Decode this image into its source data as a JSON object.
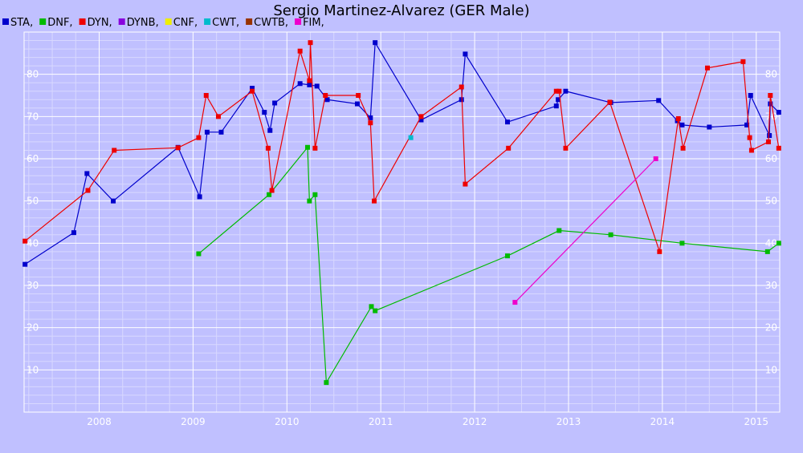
{
  "chart_data": {
    "type": "line",
    "title": "Sergio Martinez-Alvarez (GER Male)",
    "xlabel": "",
    "ylabel": "",
    "xlim": [
      2007.2,
      2015.25
    ],
    "ylim": [
      0,
      90
    ],
    "x_ticks": [
      2008,
      2009,
      2010,
      2011,
      2012,
      2013,
      2014,
      2015
    ],
    "y_ticks": [
      10,
      20,
      30,
      40,
      50,
      60,
      70,
      80
    ],
    "grid": true,
    "legend_position": "top-left",
    "legend": [
      {
        "label": "STA,",
        "color": "#0000cc"
      },
      {
        "label": "DNF,",
        "color": "#00bb00"
      },
      {
        "label": "DYN,",
        "color": "#ee0000"
      },
      {
        "label": "DYNB,",
        "color": "#8800dd"
      },
      {
        "label": "CNF,",
        "color": "#eeee00"
      },
      {
        "label": "CWT,",
        "color": "#00bbcc"
      },
      {
        "label": "CWTB,",
        "color": "#993300"
      },
      {
        "label": "FIM,",
        "color": "#ee00cc"
      }
    ],
    "series": [
      {
        "name": "STA",
        "color": "#0000cc",
        "points": [
          [
            2007.21,
            35
          ],
          [
            2007.73,
            42.5
          ],
          [
            2007.87,
            56.5
          ],
          [
            2008.15,
            50
          ],
          [
            2008.84,
            62.7
          ],
          [
            2009.07,
            51
          ],
          [
            2009.15,
            66.3
          ],
          [
            2009.3,
            66.3
          ],
          [
            2009.63,
            76.7
          ],
          [
            2009.76,
            71
          ],
          [
            2009.82,
            66.7
          ],
          [
            2009.87,
            73.2
          ],
          [
            2010.14,
            77.8
          ],
          [
            2010.24,
            77.5
          ],
          [
            2010.32,
            77.2
          ],
          [
            2010.43,
            74
          ],
          [
            2010.75,
            73
          ],
          [
            2010.89,
            69.7
          ],
          [
            2010.94,
            87.5
          ],
          [
            2011.43,
            69.2
          ],
          [
            2011.86,
            74
          ],
          [
            2011.9,
            84.8
          ],
          [
            2012.35,
            68.7
          ],
          [
            2012.87,
            72.5
          ],
          [
            2012.89,
            74
          ],
          [
            2012.97,
            76
          ],
          [
            2013.45,
            73.3
          ],
          [
            2013.96,
            73.8
          ],
          [
            2014.16,
            69
          ],
          [
            2014.21,
            68
          ],
          [
            2014.5,
            67.5
          ],
          [
            2014.9,
            68
          ],
          [
            2014.94,
            75
          ],
          [
            2015.14,
            65.5
          ],
          [
            2015.15,
            73
          ],
          [
            2015.24,
            71
          ]
        ]
      },
      {
        "name": "DNF",
        "color": "#00bb00",
        "points": [
          [
            2009.06,
            37.5
          ],
          [
            2009.81,
            51.5
          ],
          [
            2010.22,
            62.7
          ],
          [
            2010.24,
            50
          ],
          [
            2010.3,
            51.5
          ],
          [
            2010.42,
            7
          ],
          [
            2010.9,
            25
          ],
          [
            2010.94,
            24
          ],
          [
            2012.35,
            37
          ],
          [
            2012.9,
            43
          ],
          [
            2013.45,
            42
          ],
          [
            2014.21,
            40
          ],
          [
            2015.12,
            38
          ],
          [
            2015.24,
            40
          ]
        ]
      },
      {
        "name": "DYN",
        "color": "#ee0000",
        "points": [
          [
            2007.21,
            40.5
          ],
          [
            2007.88,
            52.5
          ],
          [
            2008.16,
            62
          ],
          [
            2008.84,
            62.6
          ],
          [
            2009.06,
            65
          ],
          [
            2009.14,
            75
          ],
          [
            2009.27,
            70
          ],
          [
            2009.63,
            76
          ],
          [
            2009.8,
            62.5
          ],
          [
            2009.84,
            52.5
          ],
          [
            2010.14,
            85.5
          ],
          [
            2010.24,
            78.5
          ],
          [
            2010.25,
            87.5
          ],
          [
            2010.3,
            62.5
          ],
          [
            2010.41,
            75
          ],
          [
            2010.76,
            75
          ],
          [
            2010.89,
            68.5
          ],
          [
            2010.93,
            50
          ],
          [
            2011.43,
            70
          ],
          [
            2011.86,
            77
          ],
          [
            2011.9,
            54
          ],
          [
            2012.36,
            62.5
          ],
          [
            2012.87,
            76
          ],
          [
            2012.9,
            76
          ],
          [
            2012.97,
            62.5
          ],
          [
            2013.44,
            73.4
          ],
          [
            2013.97,
            38
          ],
          [
            2014.17,
            69.5
          ],
          [
            2014.22,
            62.5
          ],
          [
            2014.48,
            81.5
          ],
          [
            2014.86,
            83
          ],
          [
            2014.93,
            65
          ],
          [
            2014.95,
            62
          ],
          [
            2015.13,
            64
          ],
          [
            2015.15,
            75
          ],
          [
            2015.24,
            62.5
          ]
        ]
      },
      {
        "name": "CWT",
        "color": "#00bbcc",
        "points": [
          [
            2011.32,
            65
          ]
        ]
      },
      {
        "name": "FIM",
        "color": "#ee00cc",
        "points": [
          [
            2012.43,
            26
          ],
          [
            2013.93,
            60
          ]
        ]
      }
    ]
  }
}
